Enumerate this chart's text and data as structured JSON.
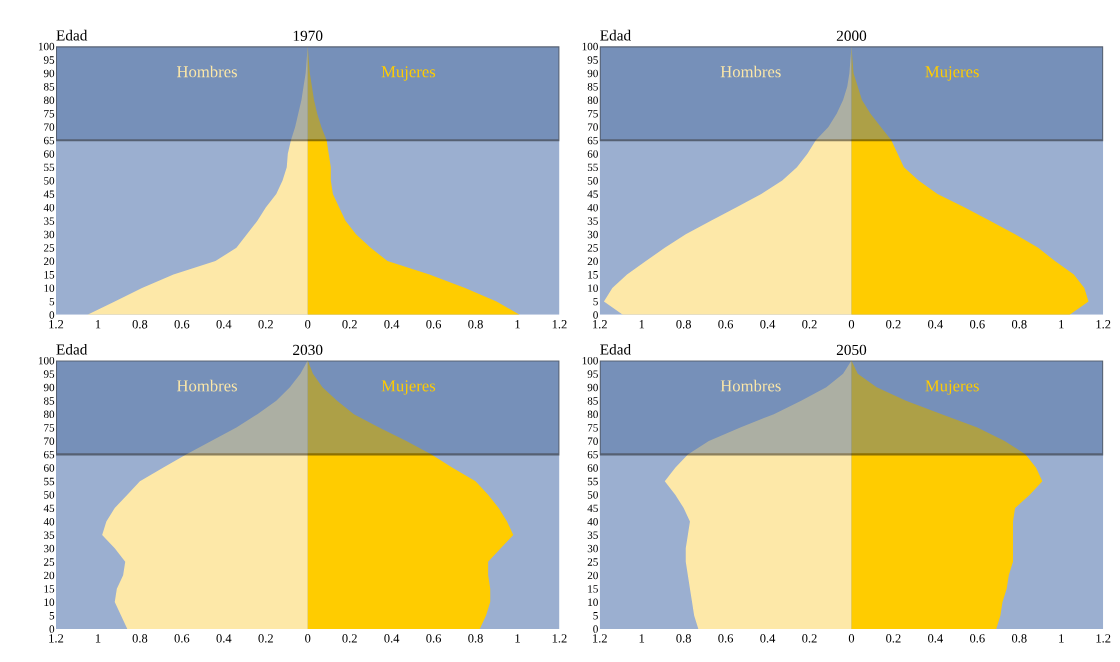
{
  "chart_data": [
    {
      "type": "area",
      "orientation": "horizontal",
      "title": "1970",
      "ylabel": "Edad",
      "x": [
        0,
        5,
        10,
        15,
        20,
        25,
        30,
        35,
        40,
        45,
        50,
        55,
        60,
        65,
        70,
        75,
        80,
        85,
        90,
        95,
        100
      ],
      "series": [
        {
          "name": "Hombres",
          "color": "#fde8a8",
          "values": [
            -1.05,
            -0.92,
            -0.79,
            -0.64,
            -0.44,
            -0.34,
            -0.29,
            -0.24,
            -0.2,
            -0.15,
            -0.12,
            -0.1,
            -0.095,
            -0.08,
            -0.06,
            -0.045,
            -0.03,
            -0.02,
            -0.01,
            -0.005,
            0
          ]
        },
        {
          "name": "Mujeres",
          "color": "#ffcc00",
          "values": [
            1.01,
            0.9,
            0.75,
            0.58,
            0.38,
            0.3,
            0.23,
            0.18,
            0.15,
            0.12,
            0.11,
            0.11,
            0.1,
            0.09,
            0.065,
            0.045,
            0.03,
            0.02,
            0.01,
            0.005,
            0
          ]
        }
      ],
      "xlim": [
        -1.2,
        1.2
      ],
      "xticks": [
        {
          "value": -1.2,
          "label": "1.2"
        },
        {
          "value": -1,
          "label": "1"
        },
        {
          "value": -0.8,
          "label": "0.8"
        },
        {
          "value": -0.6,
          "label": "0.6"
        },
        {
          "value": -0.4,
          "label": "0.4"
        },
        {
          "value": -0.2,
          "label": "0.2"
        },
        0,
        0.2,
        0.4,
        0.6,
        0.8,
        1,
        1.2
      ],
      "ylim": [
        0,
        100
      ],
      "yticks": [
        0,
        5,
        10,
        15,
        20,
        25,
        30,
        35,
        40,
        45,
        50,
        55,
        60,
        65,
        70,
        75,
        80,
        85,
        90,
        95,
        100
      ],
      "bands": [
        {
          "axis": "y",
          "from": 0,
          "to": 100,
          "color": "#9bafd0"
        },
        {
          "axis": "y",
          "from": 65,
          "to": 100,
          "color": "#4a6a9e"
        }
      ]
    },
    {
      "type": "area",
      "orientation": "horizontal",
      "title": "2000",
      "ylabel": "Edad",
      "x": [
        0,
        5,
        10,
        15,
        20,
        25,
        30,
        35,
        40,
        45,
        50,
        55,
        60,
        65,
        70,
        75,
        80,
        85,
        90,
        95,
        100
      ],
      "series": [
        {
          "name": "Hombres",
          "color": "#fde8a8",
          "values": [
            -1.09,
            -1.18,
            -1.14,
            -1.07,
            -0.98,
            -0.89,
            -0.79,
            -0.67,
            -0.55,
            -0.43,
            -0.33,
            -0.26,
            -0.21,
            -0.17,
            -0.11,
            -0.07,
            -0.04,
            -0.02,
            -0.01,
            -0.005,
            0
          ]
        },
        {
          "name": "Mujeres",
          "color": "#ffcc00",
          "values": [
            1.04,
            1.13,
            1.11,
            1.06,
            0.97,
            0.89,
            0.78,
            0.66,
            0.54,
            0.41,
            0.32,
            0.25,
            0.22,
            0.19,
            0.14,
            0.09,
            0.05,
            0.03,
            0.01,
            0.005,
            0
          ]
        }
      ],
      "xlim": [
        -1.2,
        1.2
      ],
      "xticks": [
        {
          "value": -1.2,
          "label": "1.2"
        },
        {
          "value": -1,
          "label": "1"
        },
        {
          "value": -0.8,
          "label": "0.8"
        },
        {
          "value": -0.6,
          "label": "0.6"
        },
        {
          "value": -0.4,
          "label": "0.4"
        },
        {
          "value": -0.2,
          "label": "0.2"
        },
        0,
        0.2,
        0.4,
        0.6,
        0.8,
        1,
        1.2
      ],
      "ylim": [
        0,
        100
      ],
      "yticks": [
        0,
        5,
        10,
        15,
        20,
        25,
        30,
        35,
        40,
        45,
        50,
        55,
        60,
        65,
        70,
        75,
        80,
        85,
        90,
        95,
        100
      ],
      "bands": [
        {
          "axis": "y",
          "from": 0,
          "to": 100,
          "color": "#9bafd0"
        },
        {
          "axis": "y",
          "from": 65,
          "to": 100,
          "color": "#4a6a9e"
        }
      ]
    },
    {
      "type": "area",
      "orientation": "horizontal",
      "title": "2030",
      "ylabel": "Edad",
      "x": [
        0,
        5,
        10,
        15,
        20,
        25,
        30,
        35,
        40,
        45,
        50,
        55,
        60,
        65,
        70,
        75,
        80,
        85,
        90,
        95,
        100
      ],
      "series": [
        {
          "name": "Hombres",
          "color": "#fde8a8",
          "values": [
            -0.86,
            -0.89,
            -0.92,
            -0.91,
            -0.88,
            -0.87,
            -0.92,
            -0.98,
            -0.96,
            -0.92,
            -0.86,
            -0.8,
            -0.69,
            -0.58,
            -0.46,
            -0.34,
            -0.24,
            -0.15,
            -0.085,
            -0.035,
            0
          ]
        },
        {
          "name": "Mujeres",
          "color": "#ffcc00",
          "values": [
            0.82,
            0.85,
            0.87,
            0.87,
            0.86,
            0.86,
            0.92,
            0.98,
            0.95,
            0.91,
            0.86,
            0.8,
            0.69,
            0.59,
            0.47,
            0.34,
            0.22,
            0.14,
            0.07,
            0.025,
            0
          ]
        }
      ],
      "xlim": [
        -1.2,
        1.2
      ],
      "xticks": [
        {
          "value": -1.2,
          "label": "1.2"
        },
        {
          "value": -1,
          "label": "1"
        },
        {
          "value": -0.8,
          "label": "0.8"
        },
        {
          "value": -0.6,
          "label": "0.6"
        },
        {
          "value": -0.4,
          "label": "0.4"
        },
        {
          "value": -0.2,
          "label": "0.2"
        },
        0,
        0.2,
        0.4,
        0.6,
        0.8,
        1,
        1.2
      ],
      "ylim": [
        0,
        100
      ],
      "yticks": [
        0,
        5,
        10,
        15,
        20,
        25,
        30,
        35,
        40,
        45,
        50,
        55,
        60,
        65,
        70,
        75,
        80,
        85,
        90,
        95,
        100
      ],
      "bands": [
        {
          "axis": "y",
          "from": 0,
          "to": 100,
          "color": "#9bafd0"
        },
        {
          "axis": "y",
          "from": 65,
          "to": 100,
          "color": "#4a6a9e"
        }
      ]
    },
    {
      "type": "area",
      "orientation": "horizontal",
      "title": "2050",
      "ylabel": "Edad",
      "x": [
        0,
        5,
        10,
        15,
        20,
        25,
        30,
        35,
        40,
        45,
        50,
        55,
        60,
        65,
        70,
        75,
        80,
        85,
        90,
        95,
        100
      ],
      "series": [
        {
          "name": "Hombres",
          "color": "#fde8a8",
          "values": [
            -0.73,
            -0.75,
            -0.76,
            -0.77,
            -0.78,
            -0.79,
            -0.79,
            -0.78,
            -0.77,
            -0.8,
            -0.84,
            -0.89,
            -0.84,
            -0.78,
            -0.68,
            -0.53,
            -0.37,
            -0.24,
            -0.12,
            -0.04,
            0
          ]
        },
        {
          "name": "Mujeres",
          "color": "#ffcc00",
          "values": [
            0.69,
            0.71,
            0.72,
            0.74,
            0.75,
            0.77,
            0.77,
            0.77,
            0.77,
            0.78,
            0.85,
            0.91,
            0.88,
            0.83,
            0.73,
            0.6,
            0.43,
            0.26,
            0.12,
            0.03,
            0
          ]
        }
      ],
      "xlim": [
        -1.2,
        1.2
      ],
      "xticks": [
        {
          "value": -1.2,
          "label": "1.2"
        },
        {
          "value": -1,
          "label": "1"
        },
        {
          "value": -0.8,
          "label": "0.8"
        },
        {
          "value": -0.6,
          "label": "0.6"
        },
        {
          "value": -0.4,
          "label": "0.4"
        },
        {
          "value": -0.2,
          "label": "0.2"
        },
        0,
        0.2,
        0.4,
        0.6,
        0.8,
        1,
        1.2
      ],
      "ylim": [
        0,
        100
      ],
      "yticks": [
        0,
        5,
        10,
        15,
        20,
        25,
        30,
        35,
        40,
        45,
        50,
        55,
        60,
        65,
        70,
        75,
        80,
        85,
        90,
        95,
        100
      ],
      "bands": [
        {
          "axis": "y",
          "from": 0,
          "to": 100,
          "color": "#9bafd0"
        },
        {
          "axis": "y",
          "from": 65,
          "to": 100,
          "color": "#4a6a9e"
        }
      ]
    }
  ]
}
